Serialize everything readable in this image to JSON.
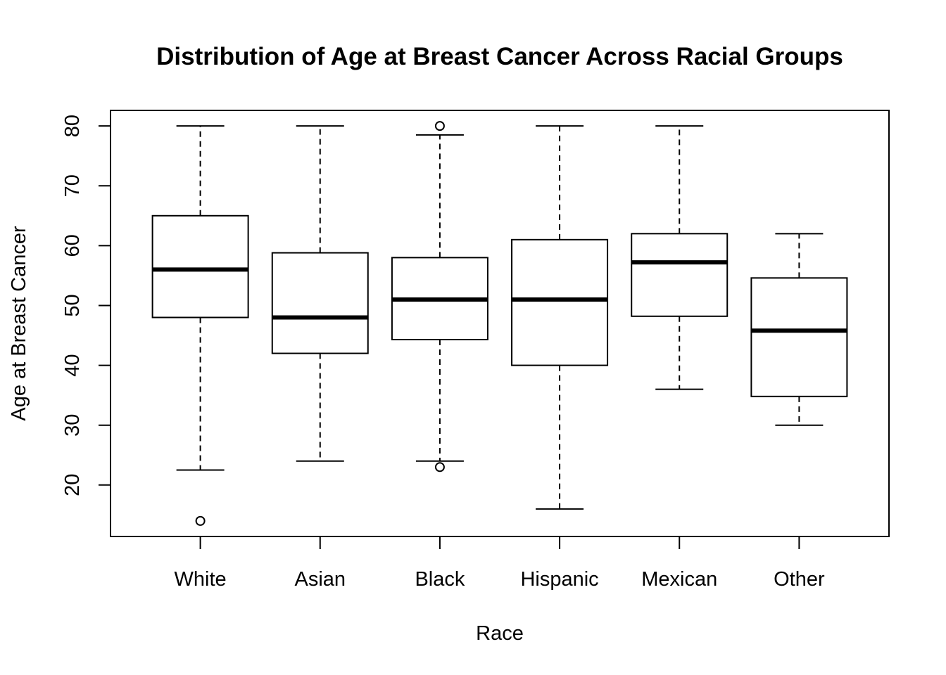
{
  "chart_data": {
    "type": "boxplot",
    "title": "Distribution of Age at Breast Cancer Across Racial Groups",
    "xlabel": "Race",
    "ylabel": "Age at Breast Cancer",
    "ylim": [
      11.4,
      82.6
    ],
    "yticks": [
      20,
      30,
      40,
      50,
      60,
      70,
      80
    ],
    "yticks_text": [
      "20",
      "30",
      "40",
      "50",
      "60",
      "70",
      "80"
    ],
    "categories": [
      "White",
      "Asian",
      "Black",
      "Hispanic",
      "Mexican",
      "Other"
    ],
    "boxes": [
      {
        "category": "White",
        "whisker_low": 22.5,
        "q1": 48,
        "median": 56,
        "q3": 65,
        "whisker_high": 80,
        "outliers": [
          14
        ]
      },
      {
        "category": "Asian",
        "whisker_low": 24,
        "q1": 42,
        "median": 48,
        "q3": 58.8,
        "whisker_high": 80,
        "outliers": []
      },
      {
        "category": "Black",
        "whisker_low": 24,
        "q1": 44.3,
        "median": 51,
        "q3": 58,
        "whisker_high": 78.5,
        "outliers": [
          80,
          23
        ]
      },
      {
        "category": "Hispanic",
        "whisker_low": 16,
        "q1": 40,
        "median": 51,
        "q3": 61,
        "whisker_high": 80,
        "outliers": []
      },
      {
        "category": "Mexican",
        "whisker_low": 36,
        "q1": 48.2,
        "median": 57.2,
        "q3": 62,
        "whisker_high": 80,
        "outliers": []
      },
      {
        "category": "Other",
        "whisker_low": 30,
        "q1": 34.8,
        "median": 45.8,
        "q3": 54.6,
        "whisker_high": 62,
        "outliers": []
      }
    ],
    "grid": false,
    "legend": "none"
  }
}
